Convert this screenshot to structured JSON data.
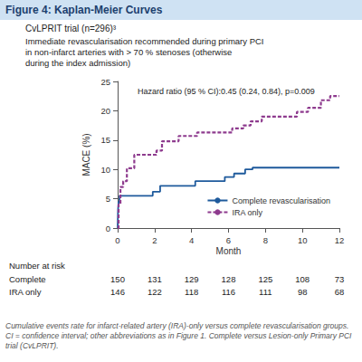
{
  "header": "Figure 4: Kaplan-Meier Curves",
  "chart_data": {
    "type": "line",
    "title": "CvLPRIT trial (n=296)³",
    "subtitle": [
      "Immediate revascularisation recommended during primary PCI",
      "in non-infarct arteries with > 70 % stenoses (otherwise",
      "during the index admission)"
    ],
    "annotation": "Hazard ratio (95 % CI):0.45 (0.24, 0.84), p=0.009",
    "x_label": "Month",
    "y_label": "MACE (%)",
    "xlim": [
      0,
      12
    ],
    "xticks": [
      0,
      2,
      4,
      6,
      8,
      10,
      12
    ],
    "ylim": [
      0,
      25
    ],
    "yticks": [
      0,
      5,
      10,
      15,
      20,
      25
    ],
    "grid": false,
    "legend": "lower right",
    "series": [
      {
        "name": "Complete revascularisation",
        "color": "#1e5a9c",
        "line_style": "solid",
        "x": [
          0,
          0.02,
          0.05,
          0.1,
          1.9,
          2.3,
          4.2,
          5.8,
          6.3,
          6.9,
          7.3,
          12
        ],
        "values": [
          0,
          3,
          4.5,
          5.5,
          6.2,
          7.2,
          8,
          8.7,
          9.3,
          10,
          10.3,
          10.3
        ]
      },
      {
        "name": "IRA only",
        "color": "#8e3b8e",
        "line_style": "dashed",
        "x": [
          0,
          0.05,
          0.15,
          0.3,
          0.5,
          0.9,
          2.1,
          2.4,
          3.3,
          4.3,
          6.2,
          6.8,
          7.2,
          7.8,
          9.7,
          10.3,
          11,
          11.5,
          12
        ],
        "values": [
          0,
          4,
          7,
          8,
          10.2,
          12.5,
          13.2,
          14.8,
          15.7,
          16.3,
          17,
          17.5,
          18.2,
          19,
          19.8,
          20.5,
          21.8,
          22.5,
          22.5
        ]
      }
    ],
    "risk_table": {
      "title": "Number at risk",
      "months": [
        0,
        2,
        4,
        6,
        8,
        10,
        12
      ],
      "rows": [
        {
          "label": "Complete",
          "values": [
            150,
            131,
            129,
            128,
            125,
            108,
            73
          ]
        },
        {
          "label": "IRA only",
          "values": [
            146,
            122,
            118,
            116,
            111,
            98,
            68
          ]
        }
      ]
    }
  },
  "caption": "Cumulative events rate for infarct-related artery (IRA)-only versus complete revascularisation groups. CI = confidence interval; other abbreviations as in Figure 1. Complete versus Lesion-only Primary PCI trial (CvLPRIT)."
}
